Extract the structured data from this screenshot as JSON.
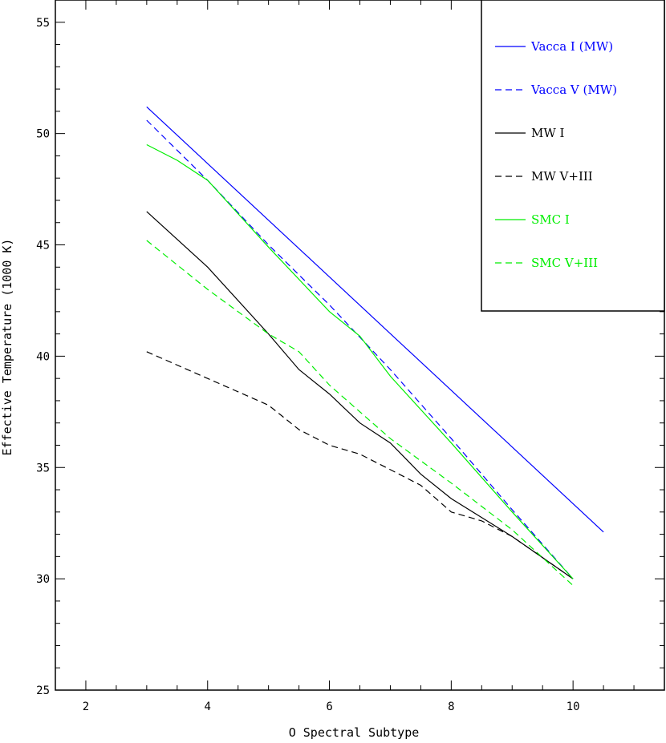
{
  "chart_data": {
    "type": "line",
    "xlabel": "O Spectral Subtype",
    "ylabel": "Effective Temperature (1000 K)",
    "xlim": [
      1.5,
      11.5
    ],
    "ylim": [
      25,
      56
    ],
    "x_ticks": [
      2,
      4,
      6,
      8,
      10
    ],
    "y_ticks": [
      25,
      30,
      35,
      40,
      45,
      50,
      55
    ],
    "legend_position": "top-right",
    "series": [
      {
        "name": "Vacca I (MW)",
        "color": "#0000ff",
        "dash": "solid",
        "x": [
          3,
          10.5
        ],
        "y": [
          51.2,
          32.1
        ]
      },
      {
        "name": "Vacca V (MW)",
        "color": "#0000ff",
        "dash": "dashed",
        "x": [
          3,
          4,
          5,
          6,
          7,
          8,
          9,
          10
        ],
        "y": [
          50.6,
          47.9,
          45.0,
          42.3,
          39.4,
          36.3,
          33.1,
          30.0
        ]
      },
      {
        "name": "MW I",
        "color": "#000000",
        "dash": "solid",
        "x": [
          3,
          4,
          5,
          5.5,
          6,
          6.5,
          7,
          7.5,
          8,
          9,
          10
        ],
        "y": [
          46.5,
          44.0,
          41.0,
          39.4,
          38.3,
          37.0,
          36.1,
          34.7,
          33.6,
          31.9,
          30.0
        ]
      },
      {
        "name": "MW V+III",
        "color": "#000000",
        "dash": "dashed",
        "x": [
          3,
          4,
          5,
          5.5,
          6,
          6.5,
          7,
          7.5,
          8,
          8.5,
          9,
          10
        ],
        "y": [
          40.2,
          39.0,
          37.8,
          36.7,
          36.0,
          35.6,
          34.9,
          34.2,
          33.0,
          32.6,
          31.9,
          30.0
        ]
      },
      {
        "name": "SMC I",
        "color": "#00ee00",
        "dash": "solid",
        "x": [
          3,
          3.5,
          4,
          5,
          6,
          6.5,
          7,
          7.5,
          8,
          9,
          10
        ],
        "y": [
          49.5,
          48.8,
          47.9,
          44.9,
          42.0,
          40.9,
          39.1,
          37.6,
          36.1,
          33.0,
          30.0
        ]
      },
      {
        "name": "SMC V+III",
        "color": "#00ee00",
        "dash": "dashed",
        "x": [
          3,
          4,
          5,
          5.5,
          6,
          7,
          8,
          9,
          10
        ],
        "y": [
          45.2,
          43.0,
          41.0,
          40.2,
          38.7,
          36.3,
          34.3,
          32.2,
          29.7
        ]
      }
    ]
  }
}
